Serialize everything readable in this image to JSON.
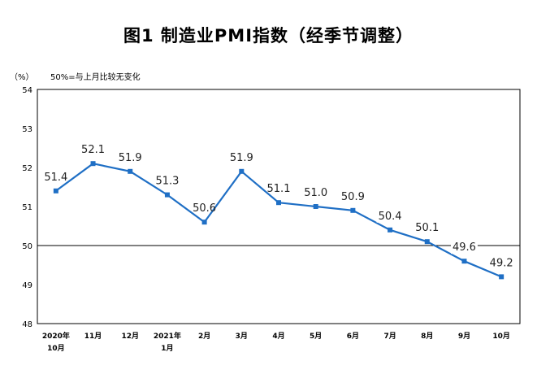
{
  "chart_data": {
    "type": "line",
    "title": "图1  制造业PMI指数（经季节调整）",
    "unit": "（%）",
    "note": "50%=与上月比较无变化",
    "categories": [
      [
        "2020年",
        "10月"
      ],
      [
        "11月"
      ],
      [
        "12月"
      ],
      [
        "2021年",
        "1月"
      ],
      [
        "2月"
      ],
      [
        "3月"
      ],
      [
        "4月"
      ],
      [
        "5月"
      ],
      [
        "6月"
      ],
      [
        "7月"
      ],
      [
        "8月"
      ],
      [
        "9月"
      ],
      [
        "10月"
      ]
    ],
    "values": [
      51.4,
      52.1,
      51.9,
      51.3,
      50.6,
      51.9,
      51.1,
      51.0,
      50.9,
      50.4,
      50.1,
      49.6,
      49.2
    ],
    "value_labels": [
      "51.4",
      "52.1",
      "51.9",
      "51.3",
      "50.6",
      "51.9",
      "51.1",
      "51.0",
      "50.9",
      "50.4",
      "50.1",
      "49.6",
      "49.2"
    ],
    "ylim": [
      48,
      54
    ],
    "yticks": [
      "48",
      "49",
      "50",
      "51",
      "52",
      "53",
      "54"
    ],
    "reference_line": 50,
    "grid": false,
    "line_color": "#1F6FC5"
  }
}
